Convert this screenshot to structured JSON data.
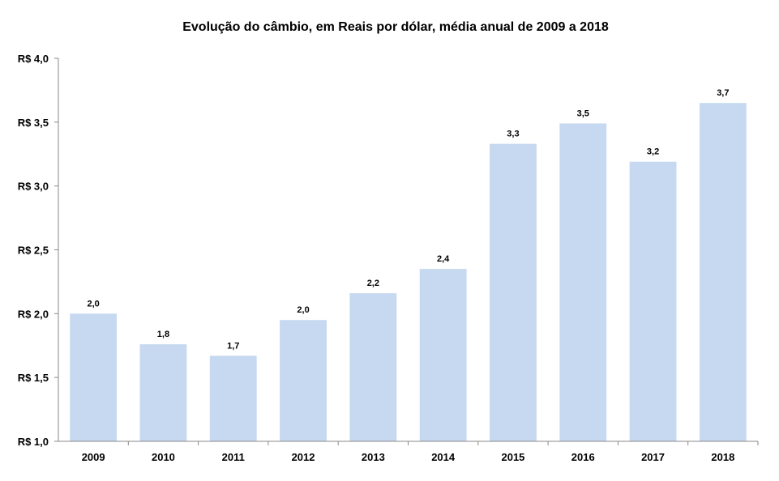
{
  "chart_data": {
    "type": "bar",
    "title": "Evolução do câmbio, em Reais por dólar, média anual de 2009 a 2018",
    "xlabel": "",
    "ylabel": "",
    "categories": [
      "2009",
      "2010",
      "2011",
      "2012",
      "2013",
      "2014",
      "2015",
      "2016",
      "2017",
      "2018"
    ],
    "values": [
      2.0,
      1.76,
      1.67,
      1.95,
      2.16,
      2.35,
      3.33,
      3.49,
      3.19,
      3.65
    ],
    "data_labels": [
      "2,0",
      "1,8",
      "1,7",
      "2,0",
      "2,2",
      "2,4",
      "3,3",
      "3,5",
      "3,2",
      "3,7"
    ],
    "ylim": [
      1.0,
      4.0
    ],
    "yticks": [
      1.0,
      1.5,
      2.0,
      2.5,
      3.0,
      3.5,
      4.0
    ],
    "ytick_labels": [
      "R$ 1,0",
      "R$ 1,5",
      "R$ 2,0",
      "R$ 2,5",
      "R$ 3,0",
      "R$ 3,5",
      "R$ 4,0"
    ],
    "bar_color": "#c6d9f0",
    "grid": false,
    "legend": "none"
  }
}
